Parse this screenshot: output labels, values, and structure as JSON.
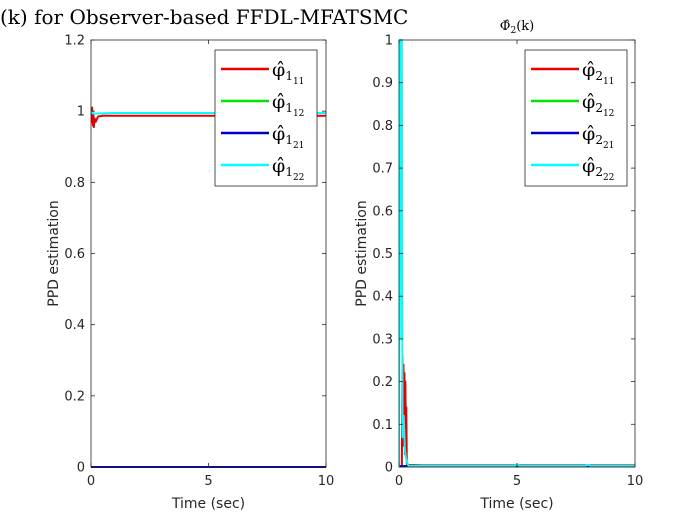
{
  "chart_data": [
    {
      "type": "line",
      "title_main": "(k) for Observer-based FFDL-MFATSMC",
      "xlabel": "Time (sec)",
      "ylabel": "PPD estimation",
      "xlim": [
        0,
        10
      ],
      "ylim": [
        0,
        1.2
      ],
      "xticks": [
        0,
        5,
        10
      ],
      "yticks": [
        0,
        0.2,
        0.4,
        0.6,
        0.8,
        1,
        1.2
      ],
      "ytick_labels": [
        "0",
        "0.2",
        "0.4",
        "0.6",
        "0.8",
        "1",
        "1.2"
      ],
      "legend": {
        "position": "top-right",
        "entries": [
          {
            "label": "φ̂",
            "sub": "1",
            "subsub": "11"
          },
          {
            "label": "φ̂",
            "sub": "1",
            "subsub": "12"
          },
          {
            "label": "φ̂",
            "sub": "1",
            "subsub": "21"
          },
          {
            "label": "φ̂",
            "sub": "1",
            "subsub": "22"
          }
        ]
      },
      "series": [
        {
          "name": "phi1_11",
          "color": "#e60000",
          "x": [
            0,
            0.02,
            0.05,
            0.08,
            0.1,
            0.12,
            0.15,
            0.2,
            0.3,
            0.5,
            1,
            10
          ],
          "y": [
            1.0,
            0.97,
            1.01,
            0.96,
            0.99,
            0.955,
            0.98,
            0.97,
            0.985,
            0.987,
            0.987,
            0.987
          ]
        },
        {
          "name": "phi1_12",
          "color": "#00e600",
          "x": [
            0,
            10
          ],
          "y": [
            0,
            0
          ]
        },
        {
          "name": "phi1_21",
          "color": "#0000cc",
          "x": [
            0,
            10
          ],
          "y": [
            0,
            0
          ]
        },
        {
          "name": "phi1_22",
          "color": "#00ffff",
          "x": [
            0,
            0.05,
            0.1,
            1,
            10
          ],
          "y": [
            1.0,
            0.995,
            0.993,
            0.995,
            0.995
          ]
        }
      ]
    },
    {
      "type": "line",
      "title": "Φ̂",
      "title_sub": "2",
      "title_suffix": "(k)",
      "xlabel": "Time (sec)",
      "ylabel": "PPD estimation",
      "xlim": [
        0,
        10
      ],
      "ylim": [
        0,
        1
      ],
      "xticks": [
        0,
        5,
        10
      ],
      "yticks": [
        0,
        0.1,
        0.2,
        0.3,
        0.4,
        0.5,
        0.6,
        0.7,
        0.8,
        0.9,
        1
      ],
      "ytick_labels": [
        "0",
        "0.1",
        "0.2",
        "0.3",
        "0.4",
        "0.5",
        "0.6",
        "0.7",
        "0.8",
        "0.9",
        "1"
      ],
      "legend": {
        "position": "top-right",
        "entries": [
          {
            "label": "φ̂",
            "sub": "2",
            "subsub": "11"
          },
          {
            "label": "φ̂",
            "sub": "2",
            "subsub": "12"
          },
          {
            "label": "φ̂",
            "sub": "2",
            "subsub": "21"
          },
          {
            "label": "φ̂",
            "sub": "2",
            "subsub": "22"
          }
        ]
      },
      "series": [
        {
          "name": "phi2_11",
          "color": "#e60000",
          "x": [
            0.12,
            0.15,
            0.17,
            0.19,
            0.21,
            0.23,
            0.25,
            0.27,
            0.29,
            0.31,
            0.33,
            0.35,
            1,
            10
          ],
          "y": [
            0.0,
            0.26,
            0.05,
            0.24,
            0.1,
            0.22,
            0.03,
            0.2,
            0.08,
            0.14,
            0.01,
            0.005,
            0.004,
            0.004
          ]
        },
        {
          "name": "phi2_12",
          "color": "#00e600",
          "x": [
            0,
            10
          ],
          "y": [
            0.002,
            0.002
          ]
        },
        {
          "name": "phi2_21",
          "color": "#0000cc",
          "x": [
            0,
            10
          ],
          "y": [
            0.002,
            0.002
          ]
        },
        {
          "name": "phi2_22",
          "color": "#00ffff",
          "x": [
            0,
            0.02,
            0.05,
            0.08,
            0.1,
            0.12,
            0.15,
            0.2,
            0.25,
            0.3,
            0.35,
            0.4,
            1,
            4.9,
            5,
            5.1,
            7.9,
            8,
            8.1,
            10
          ],
          "y": [
            0.0,
            1.0,
            0.6,
            1.0,
            0.3,
            1.0,
            0.07,
            0.12,
            0.04,
            0.02,
            0.01,
            0.003,
            0.003,
            0.003,
            0.006,
            0.003,
            0.003,
            0.005,
            0.003,
            0.003
          ]
        }
      ]
    }
  ]
}
